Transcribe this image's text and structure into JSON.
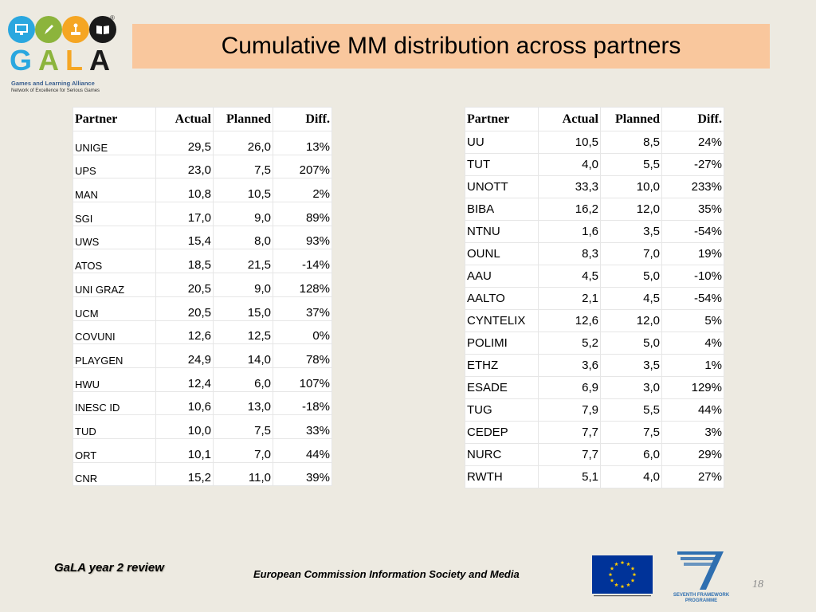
{
  "logo": {
    "text": "GALA",
    "subtitle": "Games and Learning Alliance",
    "tagline": "Network of Excellence for Serious Games",
    "registered": "®",
    "circle_colors": [
      "#2aa7df",
      "#8cb43c",
      "#f5a623",
      "#1a1a1a"
    ],
    "letter_colors": [
      "#2aa7df",
      "#8cb43c",
      "#f5a623",
      "#1a1a1a"
    ],
    "icons": [
      "monitor-icon",
      "pencil-icon",
      "joystick-icon",
      "book-icon"
    ]
  },
  "title": "Cumulative MM distribution across partners",
  "headers": [
    "Partner",
    "Actual",
    "Planned",
    "Diff."
  ],
  "table_left": [
    [
      "UNIGE",
      "29,5",
      "26,0",
      "13%"
    ],
    [
      "UPS",
      "23,0",
      "7,5",
      "207%"
    ],
    [
      "MAN",
      "10,8",
      "10,5",
      "2%"
    ],
    [
      "SGI",
      "17,0",
      "9,0",
      "89%"
    ],
    [
      "UWS",
      "15,4",
      "8,0",
      "93%"
    ],
    [
      "ATOS",
      "18,5",
      "21,5",
      "-14%"
    ],
    [
      "UNI GRAZ",
      "20,5",
      "9,0",
      "128%"
    ],
    [
      "UCM",
      "20,5",
      "15,0",
      "37%"
    ],
    [
      "COVUNI",
      "12,6",
      "12,5",
      "0%"
    ],
    [
      "PLAYGEN",
      "24,9",
      "14,0",
      "78%"
    ],
    [
      "HWU",
      "12,4",
      "6,0",
      "107%"
    ],
    [
      "INESC ID",
      "10,6",
      "13,0",
      "-18%"
    ],
    [
      "TUD",
      "10,0",
      "7,5",
      "33%"
    ],
    [
      "ORT",
      "10,1",
      "7,0",
      "44%"
    ],
    [
      "CNR",
      "15,2",
      "11,0",
      "39%"
    ]
  ],
  "table_right": [
    [
      "UU",
      "10,5",
      "8,5",
      "24%"
    ],
    [
      "TUT",
      "4,0",
      "5,5",
      "-27%"
    ],
    [
      "UNOTT",
      "33,3",
      "10,0",
      "233%"
    ],
    [
      "BIBA",
      "16,2",
      "12,0",
      "35%"
    ],
    [
      "NTNU",
      "1,6",
      "3,5",
      "-54%"
    ],
    [
      "OUNL",
      "8,3",
      "7,0",
      "19%"
    ],
    [
      "AAU",
      "4,5",
      "5,0",
      "-10%"
    ],
    [
      "AALTO",
      "2,1",
      "4,5",
      "-54%"
    ],
    [
      "CYNTELIX",
      "12,6",
      "12,0",
      "5%"
    ],
    [
      "POLIMI",
      "5,2",
      "5,0",
      "4%"
    ],
    [
      "ETHZ",
      "3,6",
      "3,5",
      "1%"
    ],
    [
      "ESADE",
      "6,9",
      "3,0",
      "129%"
    ],
    [
      "TUG",
      "7,9",
      "5,5",
      "44%"
    ],
    [
      "CEDEP",
      "7,7",
      "7,5",
      "3%"
    ],
    [
      "NURC",
      "7,7",
      "6,0",
      "29%"
    ],
    [
      "RWTH",
      "5,1",
      "4,0",
      "27%"
    ]
  ],
  "footer": {
    "left": "GaLA year 2 review",
    "center": "European Commission Information Society and Media",
    "page_number": "18",
    "fp7_line1": "SEVENTH FRAMEWORK",
    "fp7_line2": "PROGRAMME"
  },
  "colors": {
    "background": "#edeae1",
    "title_bar": "#f9c79d",
    "eu_blue": "#003399",
    "eu_star": "#ffcc00",
    "fp7_blue": "#2f6fb0"
  }
}
